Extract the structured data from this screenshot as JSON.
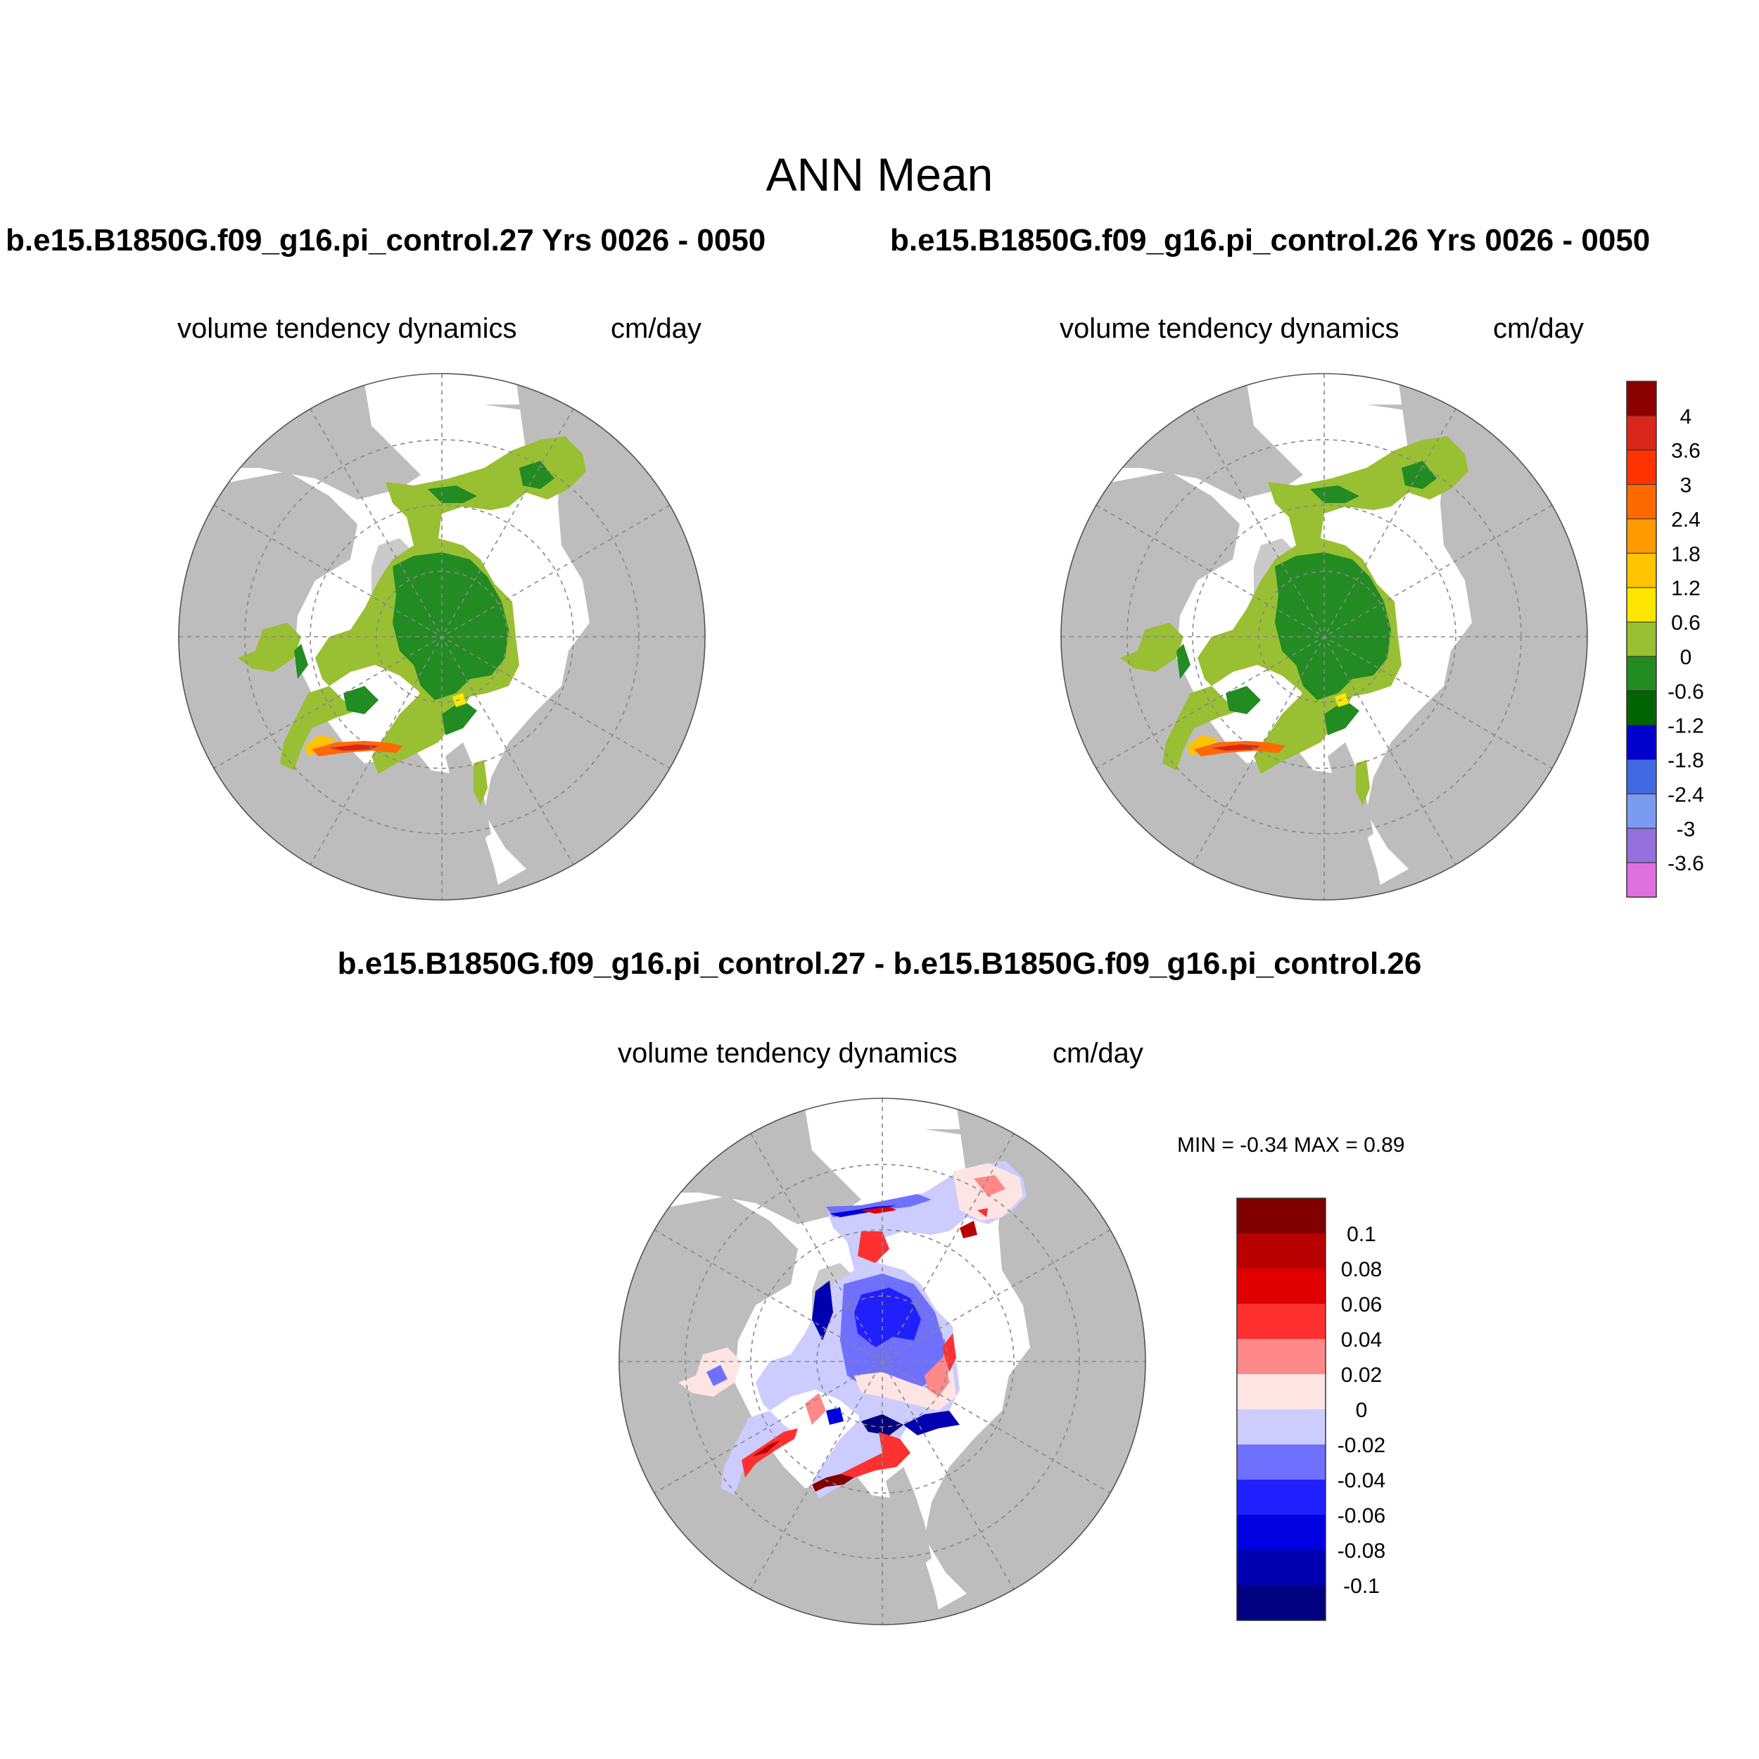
{
  "figure": {
    "title": "ANN Mean",
    "run_left": "b.e15.B1850G.f09_g16.pi_control.27  Yrs 0026 - 0050",
    "run_right": "b.e15.B1850G.f09_g16.pi_control.26  Yrs 0026 - 0050",
    "diff_title": "b.e15.B1850G.f09_g16.pi_control.27 - b.e15.B1850G.f09_g16.pi_control.26"
  },
  "panels": [
    {
      "variable": "volume tendency dynamics",
      "units": "cm/day"
    },
    {
      "variable": "volume tendency dynamics",
      "units": "cm/day"
    },
    {
      "variable": "volume tendency dynamics",
      "units": "cm/day"
    }
  ],
  "diff_stats": {
    "min_max": "MIN =  -0.34 MAX =   0.89"
  },
  "colorbar_main": {
    "labels": [
      "4",
      "3.6",
      "3",
      "2.4",
      "1.8",
      "1.2",
      "0.6",
      "0",
      "-0.6",
      "-1.2",
      "-1.8",
      "-2.4",
      "-3",
      "-3.6"
    ],
    "colors": [
      "#8b0000",
      "#d9261a",
      "#ff3300",
      "#ff6a00",
      "#ff9a00",
      "#ffc300",
      "#ffe600",
      "#99bf33",
      "#228b22",
      "#006400",
      "#0000cd",
      "#4169e1",
      "#7b9bf0",
      "#9370db",
      "#e070e0"
    ]
  },
  "colorbar_diff": {
    "labels": [
      "0.1",
      "0.08",
      "0.06",
      "0.04",
      "0.02",
      "0",
      "-0.02",
      "-0.04",
      "-0.06",
      "-0.08",
      "-0.1"
    ],
    "colors": [
      "#800000",
      "#b80000",
      "#e00000",
      "#ff3030",
      "#ff8888",
      "#ffe4e4",
      "#ccccff",
      "#7070ff",
      "#2020ff",
      "#0000e0",
      "#0000b0",
      "#000080"
    ]
  },
  "map_colors": {
    "land": "#bdbdbd",
    "ocean_unfilled": "#ffffff",
    "ice_main_low": "#228b22",
    "ice_main_pos": "#99bf33",
    "grid": "#888888"
  }
}
